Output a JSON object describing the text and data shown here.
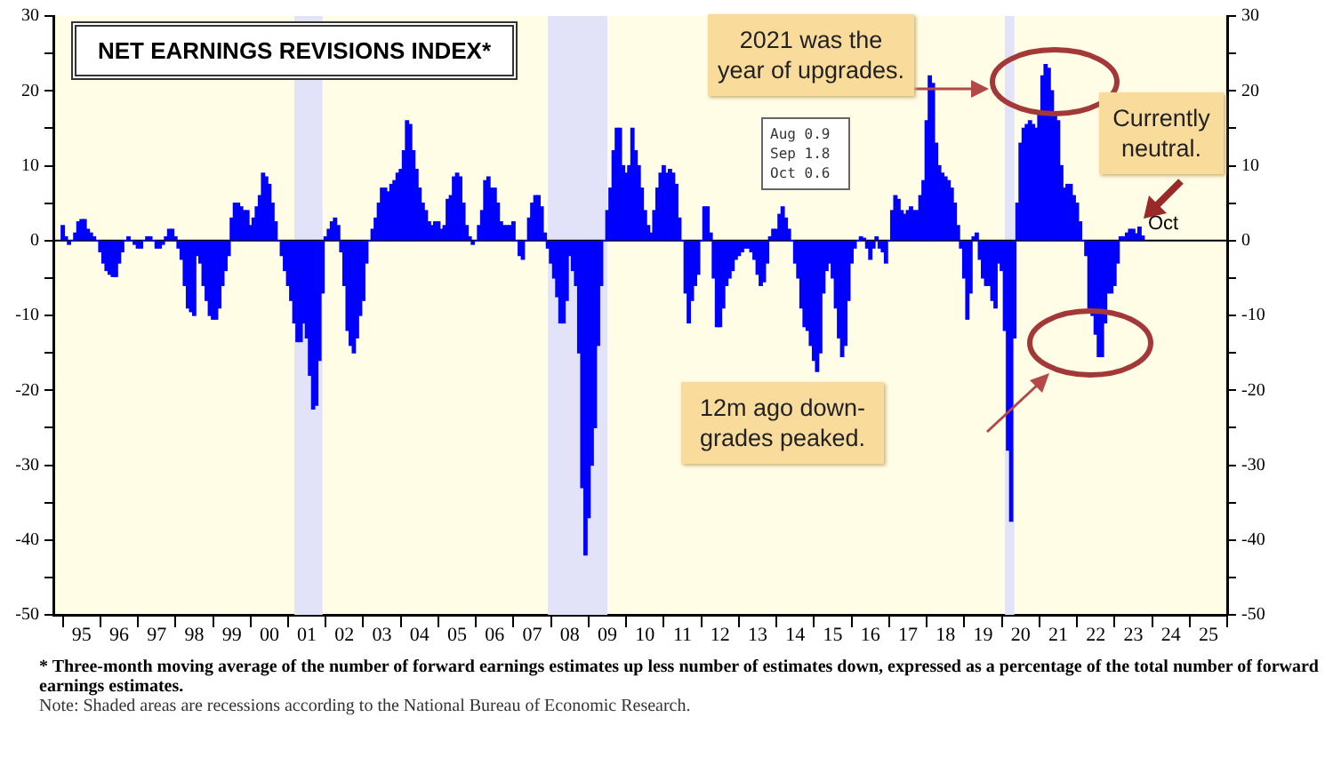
{
  "chart_data": {
    "type": "bar",
    "title": "NET EARNINGS REVISIONS INDEX*",
    "color": "#0000ff",
    "x": [
      "1995-01",
      "1995-02",
      "1995-03",
      "1995-04",
      "1995-05",
      "1995-06",
      "1995-07",
      "1995-08",
      "1995-09",
      "1995-10",
      "1995-11",
      "1995-12",
      "1996-01",
      "1996-02",
      "1996-03",
      "1996-04",
      "1996-05",
      "1996-06",
      "1996-07",
      "1996-08",
      "1996-09",
      "1996-10",
      "1996-11",
      "1996-12",
      "1997-01",
      "1997-02",
      "1997-03",
      "1997-04",
      "1997-05",
      "1997-06",
      "1997-07",
      "1997-08",
      "1997-09",
      "1997-10",
      "1997-11",
      "1997-12",
      "1998-01",
      "1998-02",
      "1998-03",
      "1998-04",
      "1998-05",
      "1998-06",
      "1998-07",
      "1998-08",
      "1998-09",
      "1998-10",
      "1998-11",
      "1998-12",
      "1999-01",
      "1999-02",
      "1999-03",
      "1999-04",
      "1999-05",
      "1999-06",
      "1999-07",
      "1999-08",
      "1999-09",
      "1999-10",
      "1999-11",
      "1999-12",
      "2000-01",
      "2000-02",
      "2000-03",
      "2000-04",
      "2000-05",
      "2000-06",
      "2000-07",
      "2000-08",
      "2000-09",
      "2000-10",
      "2000-11",
      "2000-12",
      "2001-01",
      "2001-02",
      "2001-03",
      "2001-04",
      "2001-05",
      "2001-06",
      "2001-07",
      "2001-08",
      "2001-09",
      "2001-10",
      "2001-11",
      "2001-12",
      "2002-01",
      "2002-02",
      "2002-03",
      "2002-04",
      "2002-05",
      "2002-06",
      "2002-07",
      "2002-08",
      "2002-09",
      "2002-10",
      "2002-11",
      "2002-12",
      "2003-01",
      "2003-02",
      "2003-03",
      "2003-04",
      "2003-05",
      "2003-06",
      "2003-07",
      "2003-08",
      "2003-09",
      "2003-10",
      "2003-11",
      "2003-12",
      "2004-01",
      "2004-02",
      "2004-03",
      "2004-04",
      "2004-05",
      "2004-06",
      "2004-07",
      "2004-08",
      "2004-09",
      "2004-10",
      "2004-11",
      "2004-12",
      "2005-01",
      "2005-02",
      "2005-03",
      "2005-04",
      "2005-05",
      "2005-06",
      "2005-07",
      "2005-08",
      "2005-09",
      "2005-10",
      "2005-11",
      "2005-12",
      "2006-01",
      "2006-02",
      "2006-03",
      "2006-04",
      "2006-05",
      "2006-06",
      "2006-07",
      "2006-08",
      "2006-09",
      "2006-10",
      "2006-11",
      "2006-12",
      "2007-01",
      "2007-02",
      "2007-03",
      "2007-04",
      "2007-05",
      "2007-06",
      "2007-07",
      "2007-08",
      "2007-09",
      "2007-10",
      "2007-11",
      "2007-12",
      "2008-01",
      "2008-02",
      "2008-03",
      "2008-04",
      "2008-05",
      "2008-06",
      "2008-07",
      "2008-08",
      "2008-09",
      "2008-10",
      "2008-11",
      "2008-12",
      "2009-01",
      "2009-02",
      "2009-03",
      "2009-04",
      "2009-05",
      "2009-06",
      "2009-07",
      "2009-08",
      "2009-09",
      "2009-10",
      "2009-11",
      "2009-12",
      "2010-01",
      "2010-02",
      "2010-03",
      "2010-04",
      "2010-05",
      "2010-06",
      "2010-07",
      "2010-08",
      "2010-09",
      "2010-10",
      "2010-11",
      "2010-12",
      "2011-01",
      "2011-02",
      "2011-03",
      "2011-04",
      "2011-05",
      "2011-06",
      "2011-07",
      "2011-08",
      "2011-09",
      "2011-10",
      "2011-11",
      "2011-12",
      "2012-01",
      "2012-02",
      "2012-03",
      "2012-04",
      "2012-05",
      "2012-06",
      "2012-07",
      "2012-08",
      "2012-09",
      "2012-10",
      "2012-11",
      "2012-12",
      "2013-01",
      "2013-02",
      "2013-03",
      "2013-04",
      "2013-05",
      "2013-06",
      "2013-07",
      "2013-08",
      "2013-09",
      "2013-10",
      "2013-11",
      "2013-12",
      "2014-01",
      "2014-02",
      "2014-03",
      "2014-04",
      "2014-05",
      "2014-06",
      "2014-07",
      "2014-08",
      "2014-09",
      "2014-10",
      "2014-11",
      "2014-12",
      "2015-01",
      "2015-02",
      "2015-03",
      "2015-04",
      "2015-05",
      "2015-06",
      "2015-07",
      "2015-08",
      "2015-09",
      "2015-10",
      "2015-11",
      "2015-12",
      "2016-01",
      "2016-02",
      "2016-03",
      "2016-04",
      "2016-05",
      "2016-06",
      "2016-07",
      "2016-08",
      "2016-09",
      "2016-10",
      "2016-11",
      "2016-12",
      "2017-01",
      "2017-02",
      "2017-03",
      "2017-04",
      "2017-05",
      "2017-06",
      "2017-07",
      "2017-08",
      "2017-09",
      "2017-10",
      "2017-11",
      "2017-12",
      "2018-01",
      "2018-02",
      "2018-03",
      "2018-04",
      "2018-05",
      "2018-06",
      "2018-07",
      "2018-08",
      "2018-09",
      "2018-10",
      "2018-11",
      "2018-12",
      "2019-01",
      "2019-02",
      "2019-03",
      "2019-04",
      "2019-05",
      "2019-06",
      "2019-07",
      "2019-08",
      "2019-09",
      "2019-10",
      "2019-11",
      "2019-12",
      "2020-01",
      "2020-02",
      "2020-03",
      "2020-04",
      "2020-05",
      "2020-06",
      "2020-07",
      "2020-08",
      "2020-09",
      "2020-10",
      "2020-11",
      "2020-12",
      "2021-01",
      "2021-02",
      "2021-03",
      "2021-04",
      "2021-05",
      "2021-06",
      "2021-07",
      "2021-08",
      "2021-09",
      "2021-10",
      "2021-11",
      "2021-12",
      "2022-01",
      "2022-02",
      "2022-03",
      "2022-04",
      "2022-05",
      "2022-06",
      "2022-07",
      "2022-08",
      "2022-09",
      "2022-10",
      "2022-11",
      "2022-12",
      "2023-01",
      "2023-02",
      "2023-03",
      "2023-04",
      "2023-05",
      "2023-06",
      "2023-07",
      "2023-08",
      "2023-09",
      "2023-10"
    ],
    "values": [
      2,
      0.5,
      -0.5,
      0,
      1,
      2.5,
      2.8,
      2.8,
      1.5,
      1,
      0.5,
      0,
      -1.5,
      -3,
      -4,
      -4.5,
      -4.8,
      -4.8,
      -3,
      -1.5,
      0,
      0.5,
      0,
      -0.5,
      -1,
      -1,
      0,
      0.5,
      0.5,
      0,
      -1,
      -1,
      -0.5,
      0.5,
      1.5,
      1.5,
      0.5,
      -1,
      -2.5,
      -6,
      -9,
      -9.5,
      -10,
      -2,
      -3,
      -6,
      -8,
      -10,
      -10.5,
      -10.5,
      -9,
      -6,
      -4,
      -2,
      3,
      5,
      5,
      4.5,
      4,
      4,
      2,
      3,
      4.5,
      6,
      9,
      8.5,
      7.5,
      5,
      2.5,
      0,
      -2,
      -4,
      -6,
      -8,
      -11,
      -13.5,
      -13.5,
      -11,
      -13,
      -18,
      -22.5,
      -22,
      -16,
      -7,
      0.5,
      1.5,
      2.5,
      3,
      2,
      -1.5,
      -6,
      -12,
      -14,
      -15,
      -13,
      -10,
      -8,
      -3,
      0,
      1.5,
      3,
      5,
      7,
      7,
      6.5,
      7.5,
      8,
      9,
      9.5,
      12,
      16,
      15.5,
      12,
      9.5,
      7,
      5,
      4,
      2.5,
      2,
      2.5,
      2.5,
      1.5,
      2,
      5.5,
      6,
      8.5,
      9,
      8.5,
      5,
      2,
      0.5,
      -0.5,
      0,
      2,
      4,
      8,
      8.5,
      7,
      7,
      5,
      2.5,
      2,
      2,
      2,
      2.5,
      0,
      -2,
      -2.5,
      0,
      3,
      5,
      6,
      6,
      4.5,
      1,
      -1,
      -3,
      -5,
      -7.5,
      -11,
      -11,
      -8,
      -2,
      -4,
      -6,
      -15,
      -33,
      -42,
      -37,
      -30,
      -25,
      -14,
      -6,
      0,
      4,
      7,
      12,
      15,
      15,
      10,
      9,
      10,
      15,
      12,
      10,
      7,
      4,
      2,
      1,
      4,
      7,
      9,
      10,
      9,
      9.5,
      9,
      7.5,
      3,
      0,
      -7,
      -11,
      -8,
      -6,
      -4.5,
      0,
      4.5,
      4.5,
      1,
      -5,
      -11.5,
      -11.5,
      -9,
      -6,
      -5,
      -4,
      -2.5,
      -2,
      -1.5,
      -1,
      -1,
      -1.5,
      -2.5,
      -4.5,
      -6,
      -5.5,
      -3,
      0.5,
      1.5,
      1.5,
      3.5,
      4.5,
      3,
      1.5,
      0,
      -3,
      -5,
      -9,
      -11.5,
      -12,
      -14,
      -16,
      -17.5,
      -15,
      -7,
      -4,
      -3,
      -5,
      -9,
      -13,
      -15.5,
      -14,
      -8,
      -3,
      -1,
      0,
      0.5,
      0.3,
      -1,
      -2.5,
      -1,
      0.5,
      -1,
      -1.5,
      -3,
      0,
      4,
      6,
      5.5,
      4,
      3.5,
      4,
      4.5,
      4,
      4,
      6,
      8,
      16,
      22,
      21,
      13,
      10,
      9,
      8.5,
      8,
      7,
      5,
      2,
      -1,
      -5,
      -10.5,
      -7,
      0.5,
      1,
      -2.5,
      -5,
      -6,
      -6,
      -8,
      -9,
      -3,
      -4,
      -12,
      -28,
      -37.5,
      -13,
      5,
      13,
      15,
      15.5,
      16,
      15.5,
      15,
      17,
      22,
      23.5,
      23,
      20,
      17,
      16,
      10,
      7,
      7.5,
      7.5,
      6,
      5,
      2.5,
      0,
      -2,
      -9,
      -10,
      -12.5,
      -15.5,
      -15.5,
      -11,
      -7,
      -7,
      -6,
      -3,
      0.5,
      0.5,
      1,
      1.5,
      1.5,
      0.9,
      1.8,
      0.6
    ],
    "xlim": [
      "1994-10",
      "2026-01"
    ],
    "xticks": [
      {
        "value": "1995-01",
        "label": null
      },
      {
        "value": "1995-07",
        "label": "95"
      },
      {
        "value": "1996-01",
        "label": null
      },
      {
        "value": "1996-07",
        "label": "96"
      },
      {
        "value": "1997-01",
        "label": null
      },
      {
        "value": "1997-07",
        "label": "97"
      },
      {
        "value": "1998-01",
        "label": null
      },
      {
        "value": "1998-07",
        "label": "98"
      },
      {
        "value": "1999-01",
        "label": null
      },
      {
        "value": "1999-07",
        "label": "99"
      },
      {
        "value": "2000-01",
        "label": null
      },
      {
        "value": "2000-07",
        "label": "00"
      },
      {
        "value": "2001-01",
        "label": null
      },
      {
        "value": "2001-07",
        "label": "01"
      },
      {
        "value": "2002-01",
        "label": null
      },
      {
        "value": "2002-07",
        "label": "02"
      },
      {
        "value": "2003-01",
        "label": null
      },
      {
        "value": "2003-07",
        "label": "03"
      },
      {
        "value": "2004-01",
        "label": null
      },
      {
        "value": "2004-07",
        "label": "04"
      },
      {
        "value": "2005-01",
        "label": null
      },
      {
        "value": "2005-07",
        "label": "05"
      },
      {
        "value": "2006-01",
        "label": null
      },
      {
        "value": "2006-07",
        "label": "06"
      },
      {
        "value": "2007-01",
        "label": null
      },
      {
        "value": "2007-07",
        "label": "07"
      },
      {
        "value": "2008-01",
        "label": null
      },
      {
        "value": "2008-07",
        "label": "08"
      },
      {
        "value": "2009-01",
        "label": null
      },
      {
        "value": "2009-07",
        "label": "09"
      },
      {
        "value": "2010-01",
        "label": null
      },
      {
        "value": "2010-07",
        "label": "10"
      },
      {
        "value": "2011-01",
        "label": null
      },
      {
        "value": "2011-07",
        "label": "11"
      },
      {
        "value": "2012-01",
        "label": null
      },
      {
        "value": "2012-07",
        "label": "12"
      },
      {
        "value": "2013-01",
        "label": null
      },
      {
        "value": "2013-07",
        "label": "13"
      },
      {
        "value": "2014-01",
        "label": null
      },
      {
        "value": "2014-07",
        "label": "14"
      },
      {
        "value": "2015-01",
        "label": null
      },
      {
        "value": "2015-07",
        "label": "15"
      },
      {
        "value": "2016-01",
        "label": null
      },
      {
        "value": "2016-07",
        "label": "16"
      },
      {
        "value": "2017-01",
        "label": null
      },
      {
        "value": "2017-07",
        "label": "17"
      },
      {
        "value": "2018-01",
        "label": null
      },
      {
        "value": "2018-07",
        "label": "18"
      },
      {
        "value": "2019-01",
        "label": null
      },
      {
        "value": "2019-07",
        "label": "19"
      },
      {
        "value": "2020-01",
        "label": null
      },
      {
        "value": "2020-07",
        "label": "20"
      },
      {
        "value": "2021-01",
        "label": null
      },
      {
        "value": "2021-07",
        "label": "21"
      },
      {
        "value": "2022-01",
        "label": null
      },
      {
        "value": "2022-07",
        "label": "22"
      },
      {
        "value": "2023-01",
        "label": null
      },
      {
        "value": "2023-07",
        "label": "23"
      },
      {
        "value": "2024-01",
        "label": null
      },
      {
        "value": "2024-07",
        "label": "24"
      },
      {
        "value": "2025-01",
        "label": null
      },
      {
        "value": "2025-07",
        "label": "25"
      },
      {
        "value": "2026-01",
        "label": null
      }
    ],
    "ylim": [
      -50,
      30
    ],
    "yticks": [
      -50,
      {
        "value": -45,
        "label": null
      },
      -40,
      {
        "value": -35,
        "label": null
      },
      -30,
      {
        "value": -25,
        "label": null
      },
      -20,
      {
        "value": -15,
        "label": null
      },
      -10,
      {
        "value": -5,
        "label": null
      },
      0,
      {
        "value": 5,
        "label": null
      },
      10,
      {
        "value": 15,
        "label": null
      },
      20,
      {
        "value": 25,
        "label": null
      },
      30
    ],
    "y2lim": [
      -50,
      30
    ],
    "y2ticks": [
      -50,
      {
        "value": -45,
        "label": null
      },
      -40,
      {
        "value": -35,
        "label": null
      },
      -30,
      {
        "value": -25,
        "label": null
      },
      -20,
      {
        "value": -15,
        "label": null
      },
      -10,
      {
        "value": -5,
        "label": null
      },
      0,
      {
        "value": 5,
        "label": null
      },
      10,
      {
        "value": 15,
        "label": null
      },
      20,
      {
        "value": 25,
        "label": null
      },
      30
    ],
    "bands": [
      {
        "axis": "x",
        "from": "2001-03",
        "to": "2001-12",
        "color": "#e2e2f8"
      },
      {
        "axis": "x",
        "from": "2007-12",
        "to": "2009-07",
        "color": "#e2e2f8"
      },
      {
        "axis": "x",
        "from": "2020-02",
        "to": "2020-05",
        "color": "#e2e2f8"
      }
    ],
    "ref_lines": [
      {
        "axis": "y",
        "value": 0,
        "color": "#000000"
      }
    ],
    "annotations": [
      "2021 was the year of upgrades.",
      "Currently neutral.",
      "12m ago down-grades peaked.",
      "Aug 0.9",
      "Sep 1.8",
      "Oct 0.6",
      "* Three-month moving average of the number of forward earnings estimates up less number of estimates down, expressed as a percentage of the total number of forward earnings estimates.",
      "Note: Shaded areas are recessions according to the National Bureau of Economic Research.",
      {
        "text": "Oct",
        "x": "2023-10",
        "y": 0.6
      }
    ]
  }
}
